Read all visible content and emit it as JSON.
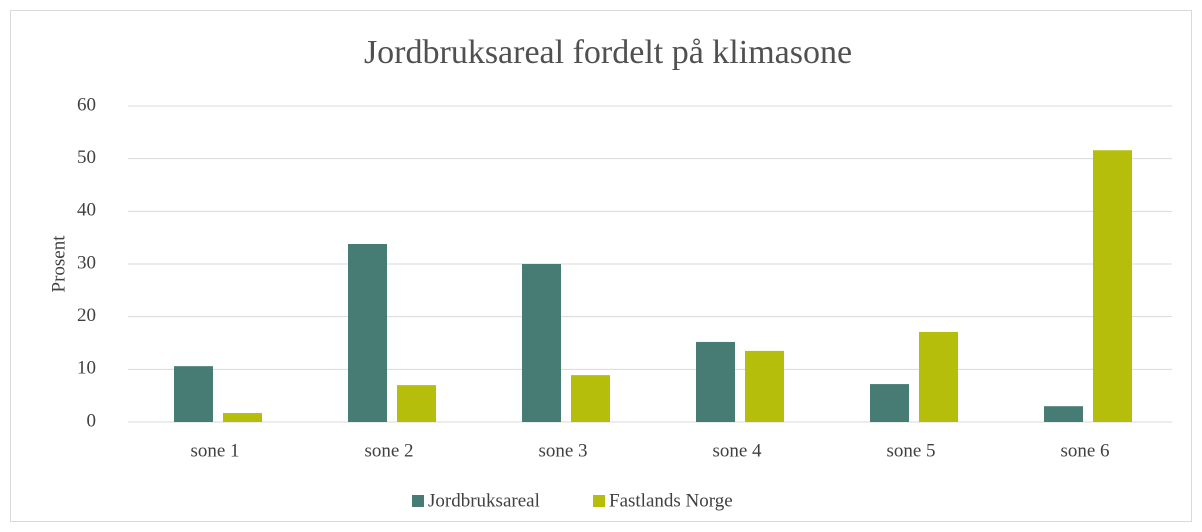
{
  "chart_data": {
    "type": "bar",
    "title": "Jordbruksareal fordelt på klimasone",
    "y_label": "Prosent",
    "categories": [
      "sone 1",
      "sone 2",
      "sone 3",
      "sone 4",
      "sone 5",
      "sone 6"
    ],
    "series": [
      {
        "name": "Jordbruksareal",
        "color": "#467c74",
        "values": [
          10.6,
          33.8,
          30.0,
          15.2,
          7.2,
          3.0
        ]
      },
      {
        "name": "Fastlands Norge",
        "color": "#b5be0a",
        "values": [
          1.7,
          7.0,
          8.9,
          13.5,
          17.1,
          51.6
        ]
      }
    ],
    "ylim": [
      0,
      60
    ],
    "yticks": [
      0,
      10,
      20,
      30,
      40,
      50,
      60
    ],
    "grid": true,
    "legend": "bottom"
  }
}
